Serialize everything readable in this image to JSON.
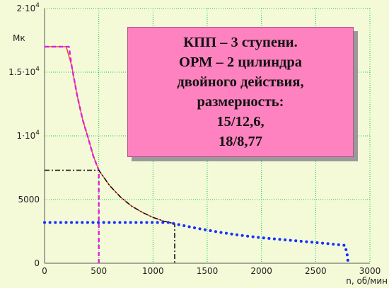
{
  "chart_data": {
    "type": "line",
    "ylabel": "Мк",
    "xlabel": "n, об/мин",
    "xlim": [
      0,
      3000
    ],
    "ylim": [
      0,
      20000
    ],
    "x_ticks": [
      "0",
      "500",
      "1000",
      "1500",
      "2000",
      "2500",
      "3000"
    ],
    "y_ticks": [
      {
        "value": 0,
        "base": "0",
        "exp": ""
      },
      {
        "value": 5000,
        "base": "5000",
        "exp": ""
      },
      {
        "value": 10000,
        "base": "1·10",
        "exp": "4"
      },
      {
        "value": 15000,
        "base": "1.5·10",
        "exp": "4"
      },
      {
        "value": 20000,
        "base": "2·10",
        "exp": "4"
      }
    ],
    "grid": true,
    "colors": {
      "background": "#f4fad8",
      "grid": "#00cc33",
      "engine_curve": "#e8463a",
      "torque_curve": "#e020e0",
      "guide_lines": "#111111",
      "dotted_curve": "#1530ff",
      "axes": "#555555"
    },
    "series": [
      {
        "style": "solid-red",
        "x": [
          0,
          200,
          250,
          300,
          350,
          400,
          450,
          500,
          600,
          700,
          800,
          900,
          1000,
          1100,
          1200
        ],
        "y": [
          17000,
          17000,
          15500,
          13200,
          11300,
          9900,
          8400,
          7300,
          6100,
          5200,
          4500,
          4000,
          3600,
          3300,
          3100
        ]
      },
      {
        "style": "dashed-magenta",
        "x": [
          0,
          225,
          250,
          300,
          350,
          400,
          450,
          500,
          500,
          500
        ],
        "y": [
          17000,
          17000,
          15500,
          13200,
          11300,
          9900,
          8400,
          7300,
          3000,
          0
        ]
      },
      {
        "style": "dashdot-black",
        "x": [
          0,
          480,
          500,
          600,
          700,
          800,
          900,
          1000,
          1100,
          1200,
          1200,
          1200
        ],
        "y": [
          7300,
          7300,
          7300,
          6100,
          5200,
          4500,
          4000,
          3600,
          3300,
          3100,
          2000,
          0
        ]
      },
      {
        "style": "dotted-blue",
        "x": [
          0,
          1150,
          1200,
          1400,
          1600,
          1800,
          2000,
          2200,
          2400,
          2600,
          2770,
          2790,
          2800
        ],
        "y": [
          3200,
          3200,
          3100,
          2750,
          2450,
          2200,
          2000,
          1850,
          1700,
          1550,
          1400,
          700,
          0
        ]
      }
    ]
  },
  "info_box": {
    "lines": [
      "КПП – 3 ступени.",
      "ОРМ – 2 цилиндра",
      "двойного действия,",
      "размерность:",
      "15/12,6,",
      "18/8,77"
    ]
  }
}
